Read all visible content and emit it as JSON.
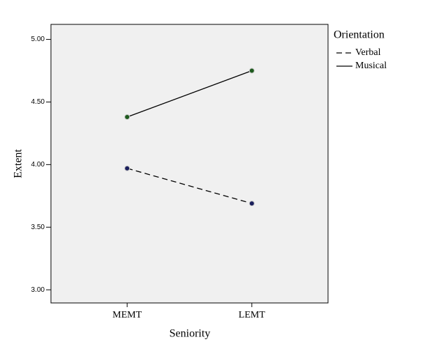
{
  "chart_data": {
    "type": "line",
    "x_label": "Seniority",
    "y_label": "Extent",
    "categories": [
      "MEMT",
      "LEMT"
    ],
    "series": [
      {
        "name": "Verbal",
        "color": "#000000",
        "marker_color": "#1a1f5c",
        "dash": true,
        "values": [
          3.97,
          3.69
        ]
      },
      {
        "name": "Musical",
        "color": "#000000",
        "marker_color": "#1d5a1d",
        "dash": false,
        "values": [
          4.38,
          4.75
        ]
      }
    ],
    "ylim": [
      2.895,
      5.12
    ],
    "yticks": [
      {
        "value": 3,
        "label": "3.00"
      },
      {
        "value": 3.5,
        "label": "3.50"
      },
      {
        "value": 4,
        "label": "4.00"
      },
      {
        "value": 4.5,
        "label": "4.50"
      },
      {
        "value": 5,
        "label": "5.00"
      }
    ],
    "legend_title": "Orientation",
    "legend_position": "right"
  }
}
